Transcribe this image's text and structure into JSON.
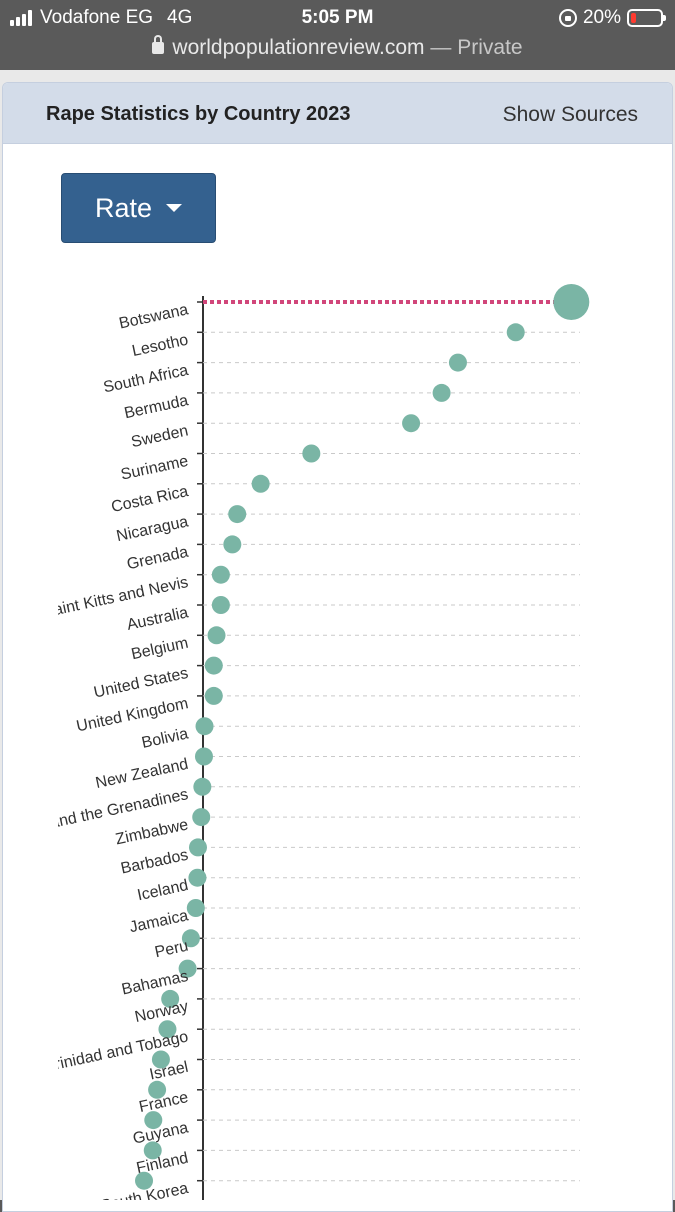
{
  "status_bar": {
    "carrier": "Vodafone EG",
    "network": "4G",
    "time": "5:05 PM",
    "battery": "20%"
  },
  "browser": {
    "url": "worldpopulationreview.com",
    "mode": "— Private"
  },
  "card": {
    "title": "Rape Statistics by Country 2023",
    "show_sources": "Show Sources",
    "dropdown_label": "Rate"
  },
  "colors": {
    "dot": "#7ab5a5",
    "highlight_line": "#d1467a",
    "header_bg": "#d3dce9",
    "button_bg": "#34618f"
  },
  "chart_data": {
    "type": "scatter",
    "orientation": "horizontal",
    "title": "",
    "xlabel": "",
    "ylabel": "",
    "categories": [
      "Botswana",
      "Lesotho",
      "South Africa",
      "Bermuda",
      "Sweden",
      "Suriname",
      "Costa Rica",
      "Nicaragua",
      "Grenada",
      "Saint Kitts and Nevis",
      "Australia",
      "Belgium",
      "United States",
      "United Kingdom",
      "Bolivia",
      "New Zealand",
      "Saint Vincent and the Grenadines",
      "Zimbabwe",
      "Barbados",
      "Iceland",
      "Jamaica",
      "Peru",
      "Bahamas",
      "Norway",
      "Trinidad and Tobago",
      "Israel",
      "France",
      "Guyana",
      "Finland",
      "South Korea"
    ],
    "values": [
      92.9,
      82.7,
      72.1,
      69.1,
      63.5,
      45.2,
      35.9,
      31.6,
      30.7,
      28.6,
      28.6,
      27.8,
      27.3,
      27.3,
      25.6,
      25.5,
      25.2,
      25.0,
      24.4,
      24.3,
      24.0,
      23.1,
      22.5,
      19.3,
      18.8,
      17.6,
      16.9,
      16.2,
      16.1,
      14.5
    ],
    "highlight": "Botswana",
    "grid": "horizontal dashed",
    "legend": "none"
  }
}
